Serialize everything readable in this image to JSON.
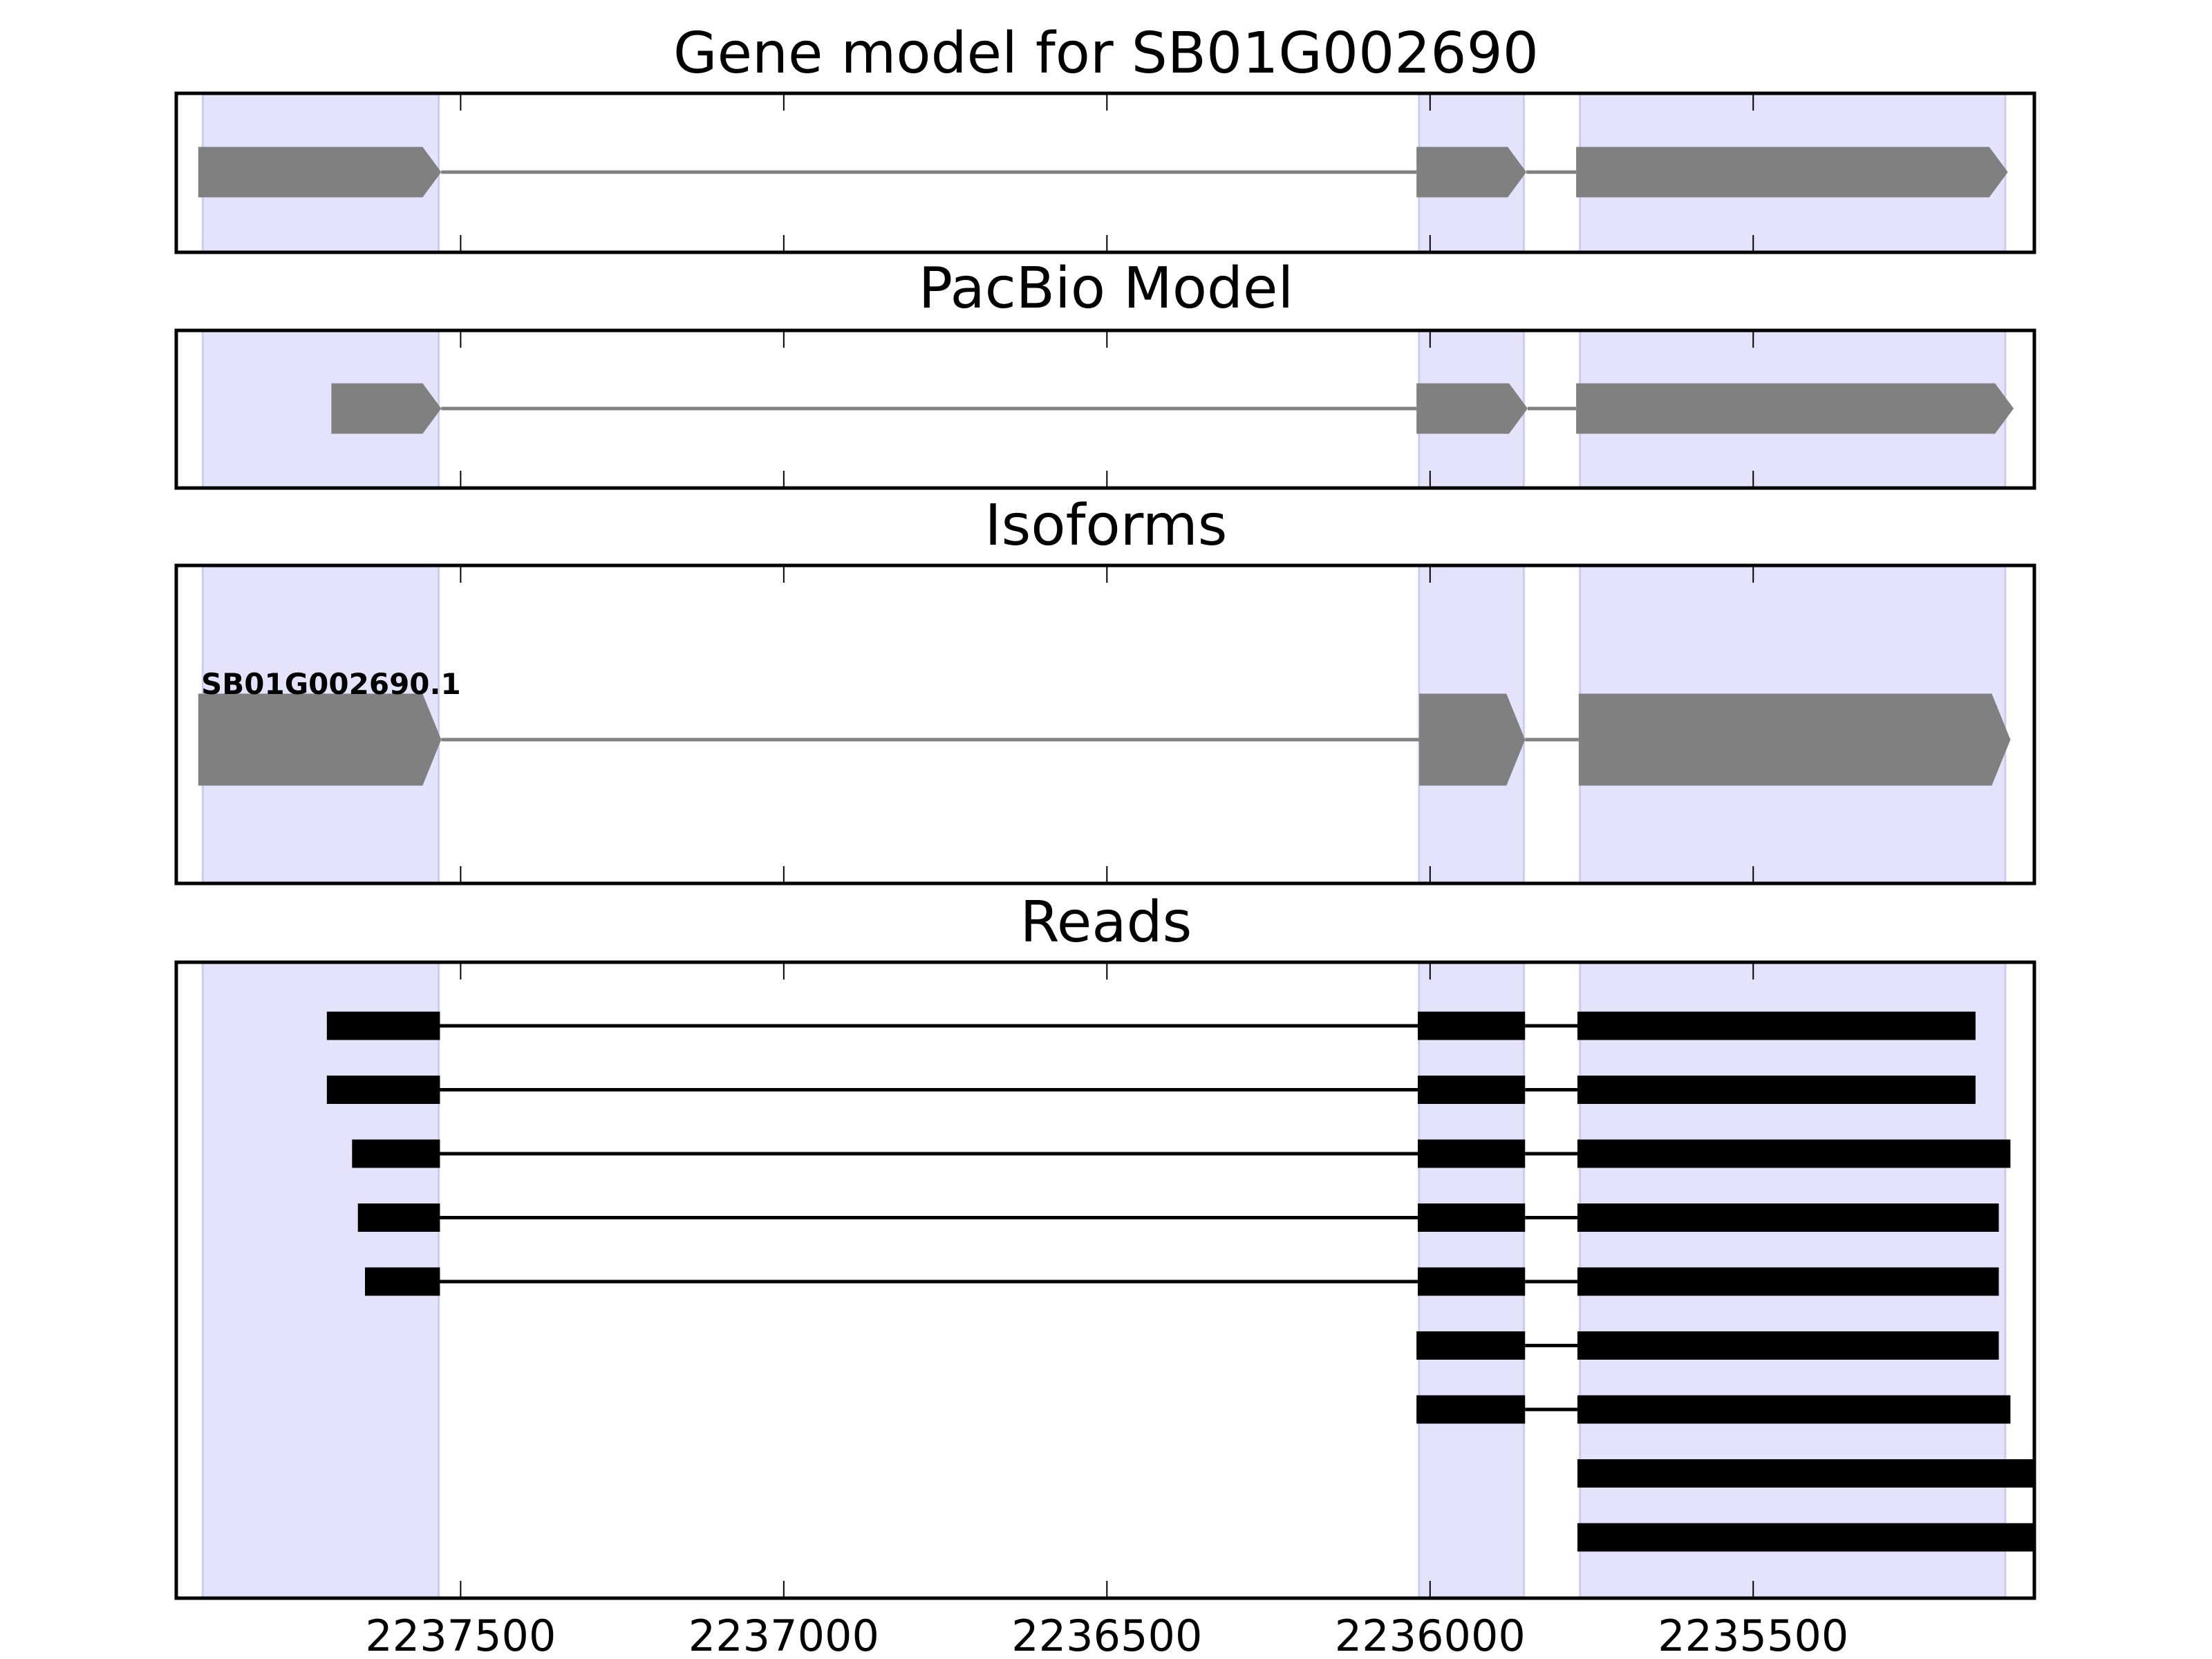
{
  "chart_data": {
    "type": "gene-track",
    "xlim": [
      2237940,
      2235065
    ],
    "xaxis_inverted": true,
    "xticks": [
      2237500,
      2237000,
      2236500,
      2236000,
      2235500
    ],
    "xtick_labels": [
      "2237500",
      "2237000",
      "2236500",
      "2236000",
      "2235500"
    ],
    "shaded_regions": [
      [
        2237899,
        2237534
      ],
      [
        2236017,
        2235855
      ],
      [
        2235768,
        2235110
      ]
    ],
    "colors": {
      "shade": "#e3e3fc",
      "shade_edge": "#ccccf0",
      "model": "#808080",
      "reads": "#000000",
      "frame": "#000000"
    },
    "panels": [
      {
        "title": "Gene model for SB01G002690",
        "kind": "model",
        "models": [
          {
            "label": "",
            "exons": [
              [
                2237906,
                2237530
              ],
              [
                2236021,
                2235851
              ],
              [
                2235774,
                2235106
              ]
            ]
          }
        ]
      },
      {
        "title": "PacBio Model",
        "kind": "model",
        "models": [
          {
            "label": "",
            "exons": [
              [
                2237700,
                2237530
              ],
              [
                2236021,
                2235849
              ],
              [
                2235774,
                2235097
              ]
            ]
          }
        ]
      },
      {
        "title": "Isoforms",
        "kind": "model",
        "models": [
          {
            "label": "SB01G002690.1",
            "exons": [
              [
                2237906,
                2237530
              ],
              [
                2236017,
                2235853
              ],
              [
                2235770,
                2235102
              ]
            ]
          }
        ]
      },
      {
        "title": "Reads",
        "kind": "reads",
        "reads": [
          [
            [
              2237707,
              2237532
            ],
            [
              2236019,
              2235853
            ],
            [
              2235772,
              2235156
            ]
          ],
          [
            [
              2237707,
              2237532
            ],
            [
              2236019,
              2235853
            ],
            [
              2235772,
              2235156
            ]
          ],
          [
            [
              2237668,
              2237532
            ],
            [
              2236019,
              2235853
            ],
            [
              2235772,
              2235102
            ]
          ],
          [
            [
              2237659,
              2237532
            ],
            [
              2236019,
              2235853
            ],
            [
              2235772,
              2235120
            ]
          ],
          [
            [
              2237648,
              2237532
            ],
            [
              2236019,
              2235853
            ],
            [
              2235772,
              2235120
            ]
          ],
          [
            [
              2236021,
              2235853
            ],
            [
              2235772,
              2235120
            ]
          ],
          [
            [
              2236021,
              2235853
            ],
            [
              2235772,
              2235102
            ]
          ],
          [
            [
              2235772,
              2235065
            ]
          ],
          [
            [
              2235772,
              2235065
            ]
          ]
        ]
      }
    ]
  }
}
